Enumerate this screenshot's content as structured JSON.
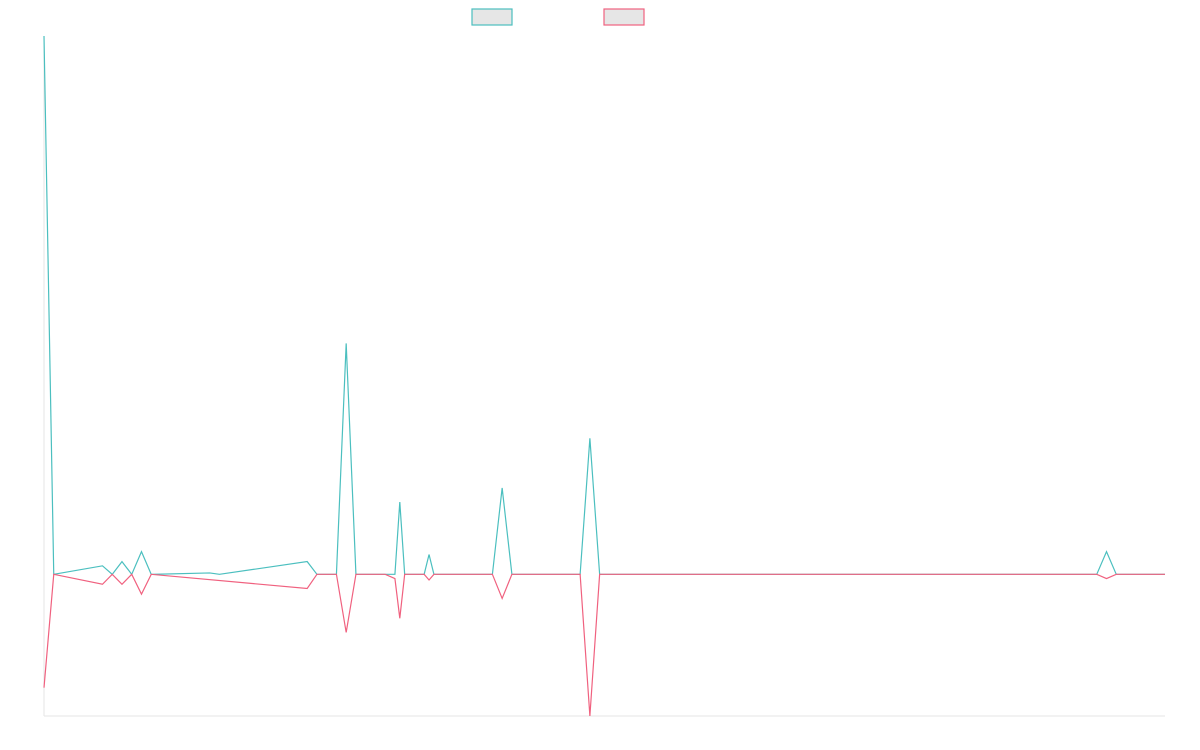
{
  "colors": {
    "series_a": "#4bbfbf",
    "series_b": "#f0617f",
    "swatch_fill": "#e6e6e6",
    "axis": "#e6e6e6"
  },
  "chart_data": {
    "type": "line",
    "title": "",
    "xlabel": "",
    "ylabel": "",
    "legend_position": "top-center",
    "grid": false,
    "x_count": 116,
    "ylim": [
      -100,
      380
    ],
    "series": [
      {
        "color": "#4bbfbf",
        "points": [
          [
            0,
            380
          ],
          [
            1,
            0
          ],
          [
            6,
            6
          ],
          [
            7,
            0
          ],
          [
            8,
            9
          ],
          [
            9,
            0
          ],
          [
            10,
            16
          ],
          [
            11,
            0
          ],
          [
            17,
            1
          ],
          [
            18,
            0
          ],
          [
            27,
            9
          ],
          [
            28,
            0
          ],
          [
            30,
            0
          ],
          [
            31,
            163
          ],
          [
            32,
            0
          ],
          [
            35,
            0
          ],
          [
            36,
            0
          ],
          [
            36.5,
            51
          ],
          [
            37,
            0
          ],
          [
            39,
            0
          ],
          [
            39.5,
            14
          ],
          [
            40,
            0
          ],
          [
            46,
            0
          ],
          [
            47,
            61
          ],
          [
            48,
            0
          ],
          [
            55,
            0
          ],
          [
            56,
            96
          ],
          [
            57,
            0
          ],
          [
            108,
            0
          ],
          [
            109,
            16
          ],
          [
            110,
            0
          ],
          [
            115,
            0
          ]
        ]
      },
      {
        "color": "#f0617f",
        "points": [
          [
            0,
            -80
          ],
          [
            1,
            0
          ],
          [
            6,
            -7
          ],
          [
            7,
            0
          ],
          [
            8,
            -7
          ],
          [
            9,
            0
          ],
          [
            10,
            -14
          ],
          [
            11,
            0
          ],
          [
            27,
            -10
          ],
          [
            28,
            0
          ],
          [
            30,
            0
          ],
          [
            31,
            -41
          ],
          [
            32,
            0
          ],
          [
            35,
            0
          ],
          [
            36,
            -3
          ],
          [
            36.5,
            -31
          ],
          [
            37,
            0
          ],
          [
            39,
            0
          ],
          [
            39.5,
            -4
          ],
          [
            40,
            0
          ],
          [
            46,
            0
          ],
          [
            47,
            -17
          ],
          [
            48,
            0
          ],
          [
            55,
            0
          ],
          [
            56,
            -100
          ],
          [
            57,
            0
          ],
          [
            108,
            0
          ],
          [
            109,
            -3
          ],
          [
            110,
            0
          ],
          [
            115,
            0
          ]
        ]
      }
    ]
  }
}
